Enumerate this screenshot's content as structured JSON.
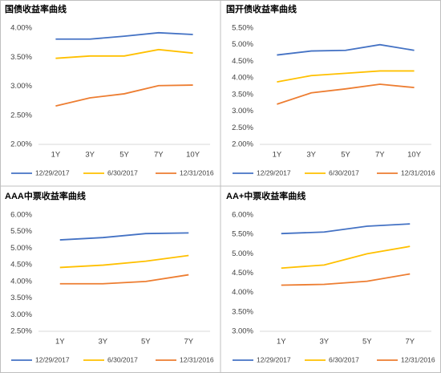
{
  "chart_data": [
    {
      "type": "line",
      "title": "国债收益率曲线",
      "categories": [
        "1Y",
        "3Y",
        "5Y",
        "7Y",
        "10Y"
      ],
      "series": [
        {
          "name": "12/29/2017",
          "color": "#4472c4",
          "values": [
            3.81,
            3.81,
            3.86,
            3.92,
            3.89
          ]
        },
        {
          "name": "6/30/2017",
          "color": "#ffc000",
          "values": [
            3.48,
            3.52,
            3.52,
            3.63,
            3.57
          ]
        },
        {
          "name": "12/31/2016",
          "color": "#ed7d31",
          "values": [
            2.66,
            2.8,
            2.87,
            3.01,
            3.02
          ]
        }
      ],
      "ylim": [
        2,
        4
      ],
      "yticks": [
        {
          "value": 2,
          "label": "2.00%"
        },
        {
          "value": 2.5,
          "label": "2.50%"
        },
        {
          "value": 3,
          "label": "3.00%"
        },
        {
          "value": 3.5,
          "label": "3.50%"
        },
        {
          "value": 4,
          "label": "4.00%"
        }
      ],
      "grid": false
    },
    {
      "type": "line",
      "title": "国开债收益率曲线",
      "categories": [
        "1Y",
        "3Y",
        "5Y",
        "7Y",
        "10Y"
      ],
      "series": [
        {
          "name": "12/29/2017",
          "color": "#4472c4",
          "values": [
            4.69,
            4.81,
            4.83,
            5.0,
            4.83
          ]
        },
        {
          "name": "6/30/2017",
          "color": "#ffc000",
          "values": [
            3.88,
            4.07,
            4.14,
            4.21,
            4.21
          ]
        },
        {
          "name": "12/31/2016",
          "color": "#ed7d31",
          "values": [
            3.21,
            3.55,
            3.67,
            3.81,
            3.71
          ]
        }
      ],
      "ylim": [
        2,
        5.5
      ],
      "yticks": [
        {
          "value": 2,
          "label": "2.00%"
        },
        {
          "value": 2.5,
          "label": "2.50%"
        },
        {
          "value": 3,
          "label": "3.00%"
        },
        {
          "value": 3.5,
          "label": "3.50%"
        },
        {
          "value": 4,
          "label": "4.00%"
        },
        {
          "value": 4.5,
          "label": "4.50%"
        },
        {
          "value": 5,
          "label": "5.00%"
        },
        {
          "value": 5.5,
          "label": "5.50%"
        }
      ],
      "grid": false
    },
    {
      "type": "line",
      "title": "AAA中票收益率曲线",
      "categories": [
        "1Y",
        "3Y",
        "5Y",
        "7Y"
      ],
      "series": [
        {
          "name": "12/29/2017",
          "color": "#4472c4",
          "values": [
            5.25,
            5.32,
            5.44,
            5.46
          ]
        },
        {
          "name": "6/30/2017",
          "color": "#ffc000",
          "values": [
            4.42,
            4.49,
            4.61,
            4.78
          ]
        },
        {
          "name": "12/31/2016",
          "color": "#ed7d31",
          "values": [
            3.93,
            3.93,
            4.0,
            4.2
          ]
        }
      ],
      "ylim": [
        2.5,
        6
      ],
      "yticks": [
        {
          "value": 2.5,
          "label": "2.50%"
        },
        {
          "value": 3,
          "label": "3.00%"
        },
        {
          "value": 3.5,
          "label": "3.50%"
        },
        {
          "value": 4,
          "label": "4.00%"
        },
        {
          "value": 4.5,
          "label": "4.50%"
        },
        {
          "value": 5,
          "label": "5.00%"
        },
        {
          "value": 5.5,
          "label": "5.50%"
        },
        {
          "value": 6,
          "label": "6.00%"
        }
      ],
      "grid": false
    },
    {
      "type": "line",
      "title": "AA+中票收益率曲线",
      "categories": [
        "1Y",
        "3Y",
        "5Y",
        "7Y"
      ],
      "series": [
        {
          "name": "12/29/2017",
          "color": "#4472c4",
          "values": [
            5.52,
            5.56,
            5.71,
            5.77
          ]
        },
        {
          "name": "6/30/2017",
          "color": "#ffc000",
          "values": [
            4.63,
            4.71,
            5.0,
            5.19
          ]
        },
        {
          "name": "12/31/2016",
          "color": "#ed7d31",
          "values": [
            4.19,
            4.21,
            4.29,
            4.48
          ]
        }
      ],
      "ylim": [
        3,
        6
      ],
      "yticks": [
        {
          "value": 3,
          "label": "3.00%"
        },
        {
          "value": 3.5,
          "label": "3.50%"
        },
        {
          "value": 4,
          "label": "4.00%"
        },
        {
          "value": 4.5,
          "label": "4.50%"
        },
        {
          "value": 5,
          "label": "5.00%"
        },
        {
          "value": 5.5,
          "label": "5.50%"
        },
        {
          "value": 6,
          "label": "6.00%"
        }
      ],
      "grid": false
    }
  ]
}
